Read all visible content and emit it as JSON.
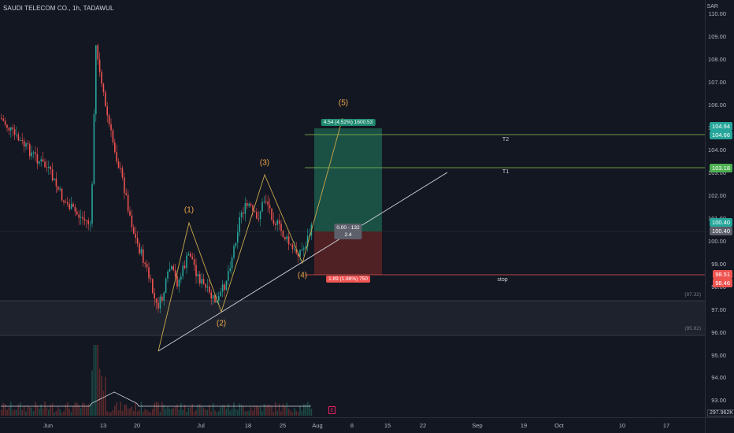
{
  "chart": {
    "title": "SAUDI TELECOM CO., 1h, TADAWUL",
    "currency": "SAR",
    "y_ticks": [
      "110.00",
      "109.00",
      "108.00",
      "107.00",
      "106.00",
      "105.00",
      "104.00",
      "103.00",
      "102.00",
      "101.00",
      "100.00",
      "99.00",
      "98.00",
      "97.00",
      "96.00",
      "95.00",
      "94.00",
      "93.00"
    ],
    "x_ticks": [
      "Jun",
      "13",
      "20",
      "Jul",
      "18",
      "25",
      "Aug",
      "8",
      "15",
      "22",
      "Sep",
      "19",
      "Oct",
      "10",
      "17"
    ],
    "price_tags": {
      "t2_high": "104.94",
      "t2": "104.66",
      "t1": "103.18",
      "entry_a": "100.40",
      "entry_b": "100.40",
      "stop_a": "98.51",
      "stop_b": "98.46"
    },
    "zone_labels": {
      "upper": "(97.32)",
      "lower": "(95.82)"
    },
    "wave_labels": [
      "(1)",
      "(2)",
      "(3)",
      "(4)",
      "(5)"
    ],
    "position": {
      "target_label": "4.54 (4.52%) 1600.53",
      "center_label_line1": "0.00 - 132",
      "center_label_line2": "2.4",
      "stop_label": "1.89 (1.88%) 750"
    },
    "level_texts": {
      "t2": "T2",
      "t1": "T1",
      "stop": "stop"
    },
    "event_marker": "E",
    "volume_tag": "297.962K",
    "colors": {
      "background": "#131722",
      "up": "#26a69a",
      "down": "#ef5350",
      "wave": "#f0a94b",
      "target_zone": "#1d5a4b",
      "stop_zone": "#5a2325",
      "level_line": "#8bc34a"
    },
    "chart_data": {
      "type": "candlestick",
      "symbol": "SAUDI TELECOM CO.",
      "interval": "1h",
      "exchange": "TADAWUL",
      "y_range": [
        92.6,
        110.2
      ],
      "waves": [
        {
          "label": "(1)",
          "price": 100.7
        },
        {
          "label": "(2)",
          "price": 96.8
        },
        {
          "label": "(3)",
          "price": 102.8
        },
        {
          "label": "(4)",
          "price": 99.1
        },
        {
          "label": "(5)",
          "price": 106.1
        }
      ],
      "entry": 100.4,
      "target": 104.94,
      "stop": 98.51,
      "levels": {
        "T2": 104.66,
        "T1": 103.18,
        "stop": 98.46
      },
      "support_zone": [
        95.82,
        97.32
      ]
    }
  }
}
